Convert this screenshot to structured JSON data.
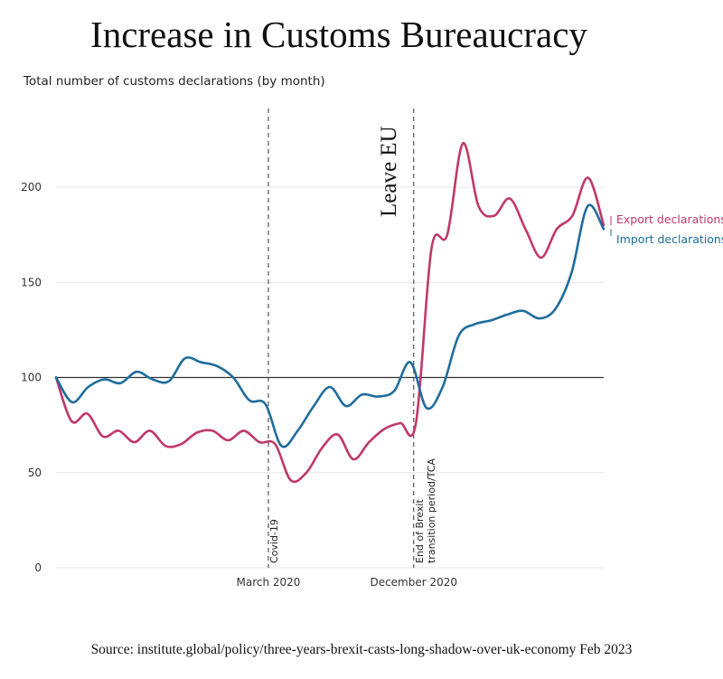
{
  "chart_data": {
    "type": "line",
    "title": "Increase in Customs Bureaucracy",
    "subtitle": "Total number of customs declarations (by month)",
    "source": "Source: institute.global/policy/three-years-brexit-casts-long-shadow-over-uk-economy Feb 2023",
    "ylim": [
      0,
      230
    ],
    "yticks": [
      0,
      50,
      100,
      150,
      200
    ],
    "reference_line": 100,
    "xlim": [
      0,
      49
    ],
    "xticks": [
      {
        "x": 19,
        "label": "March 2020"
      },
      {
        "x": 32,
        "label": "December 2020"
      }
    ],
    "markers": [
      {
        "x": 19,
        "label": "Covid-19"
      },
      {
        "x": 32,
        "lines": [
          "End of Brexit",
          "transition period/TCA"
        ],
        "annotation": "Leave EU"
      }
    ],
    "series": [
      {
        "name": "Export declarations",
        "color": "#c0386b",
        "values": [
          100,
          77,
          81,
          69,
          72,
          66,
          72,
          64,
          65,
          71,
          72,
          67,
          72,
          66,
          65,
          46,
          50,
          63,
          70,
          57,
          66,
          73,
          76,
          76,
          168,
          175,
          223,
          190,
          185,
          194,
          178,
          163,
          178,
          185,
          205,
          180
        ]
      },
      {
        "name": "Import declarations",
        "color": "#1f6d9c",
        "values": [
          100,
          87,
          95,
          99,
          97,
          103,
          99,
          98,
          110,
          108,
          106,
          100,
          88,
          86,
          64,
          72,
          85,
          95,
          85,
          91,
          90,
          93,
          108,
          84,
          95,
          122,
          128,
          130,
          133,
          135,
          131,
          136,
          155,
          190,
          178
        ]
      }
    ]
  }
}
